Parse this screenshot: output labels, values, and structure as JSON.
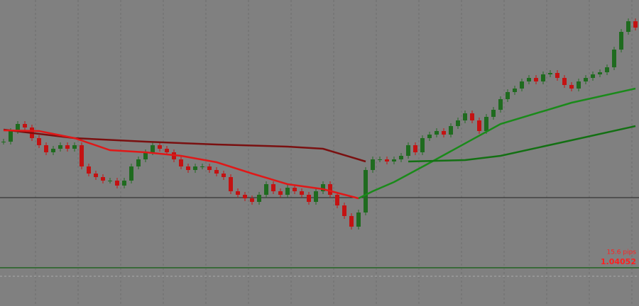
{
  "chart_data": {
    "type": "candlestick",
    "up_color": "#1f6b1f",
    "down_color": "#c41212",
    "ylim": [
      1.0338,
      1.0413
    ],
    "level": 1.03572,
    "level_color": "#222222",
    "close": [
      1.0373,
      1.0376,
      1.0378,
      1.0377,
      1.0374,
      1.0372,
      1.037,
      1.0371,
      1.0372,
      1.0371,
      1.0372,
      1.0366,
      1.0364,
      1.0363,
      1.0362,
      1.0362,
      1.03606,
      1.0362,
      1.0366,
      1.0368,
      1.037,
      1.0372,
      1.0371,
      1.037,
      1.0368,
      1.0366,
      1.0365,
      1.0366,
      1.0366,
      1.0365,
      1.0364,
      1.0363,
      1.0359,
      1.0358,
      1.0357,
      1.0356,
      1.0358,
      1.0361,
      1.0359,
      1.0358,
      1.036,
      1.0359,
      1.0358,
      1.0356,
      1.0359,
      1.0361,
      1.0358,
      1.0355,
      1.0352,
      1.0349,
      1.0353,
      1.0365,
      1.0368,
      1.0368,
      1.03674,
      1.0368,
      1.0369,
      1.0372,
      1.037,
      1.0374,
      1.0375,
      1.0376,
      1.0375,
      1.03774,
      1.0379,
      1.0381,
      1.0379,
      1.0376,
      1.038,
      1.0382,
      1.0385,
      1.0387,
      1.0388,
      1.039,
      1.0391,
      1.039,
      1.0392,
      1.03924,
      1.0391,
      1.0389,
      1.0388,
      1.039,
      1.0391,
      1.0392,
      1.03926,
      1.0394,
      1.0399,
      1.0404,
      1.0407,
      1.04052
    ],
    "lines": [
      {
        "color": "#7a1010",
        "x": [
          0,
          10,
          20,
          30,
          40,
          45,
          51
        ],
        "values": [
          1.03764,
          1.0374,
          1.0373,
          1.03722,
          1.03716,
          1.0371,
          1.03674
        ]
      },
      {
        "color": "#e01818",
        "x": [
          0,
          5,
          10,
          15,
          20,
          25,
          30,
          35,
          40,
          45,
          50
        ],
        "values": [
          1.03762,
          1.0376,
          1.0374,
          1.03706,
          1.037,
          1.0369,
          1.03672,
          1.0364,
          1.0361,
          1.03596,
          1.0357
        ]
      },
      {
        "color": "#1a8a1a",
        "x": [
          50,
          52,
          55,
          60,
          70,
          80,
          89
        ],
        "values": [
          1.0357,
          1.0359,
          1.03616,
          1.0367,
          1.0378,
          1.0384,
          1.0388
        ]
      },
      {
        "color": "#137013",
        "x": [
          57,
          65,
          70,
          80,
          89
        ],
        "values": [
          1.03674,
          1.03678,
          1.0369,
          1.03734,
          1.03774
        ]
      }
    ],
    "pips_label": "15.6 pips",
    "price_label": "1.04052"
  }
}
